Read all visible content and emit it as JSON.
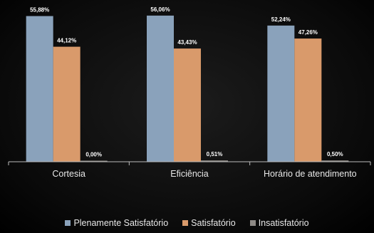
{
  "chart_data": {
    "type": "bar",
    "categories": [
      "Cortesia",
      "Eficiência",
      "Horário de atendimento"
    ],
    "series": [
      {
        "name": "Plenamente Satisfatório",
        "values": [
          55.88,
          56.06,
          52.24
        ],
        "labels": [
          "55,88%",
          "56,06%",
          "52,24%"
        ],
        "color": "#8aa2bb"
      },
      {
        "name": "Satisfatório",
        "values": [
          44.12,
          43.43,
          47.26
        ],
        "labels": [
          "44,12%",
          "43,43%",
          "47,26%"
        ],
        "color": "#d99a6b"
      },
      {
        "name": "Insatisfatório",
        "values": [
          0.0,
          0.51,
          0.5
        ],
        "labels": [
          "0,00%",
          "0,51%",
          "0,50%"
        ],
        "color": "#8e8a86"
      }
    ],
    "ylim": [
      0,
      60
    ],
    "grid": false,
    "legend_position": "bottom"
  }
}
